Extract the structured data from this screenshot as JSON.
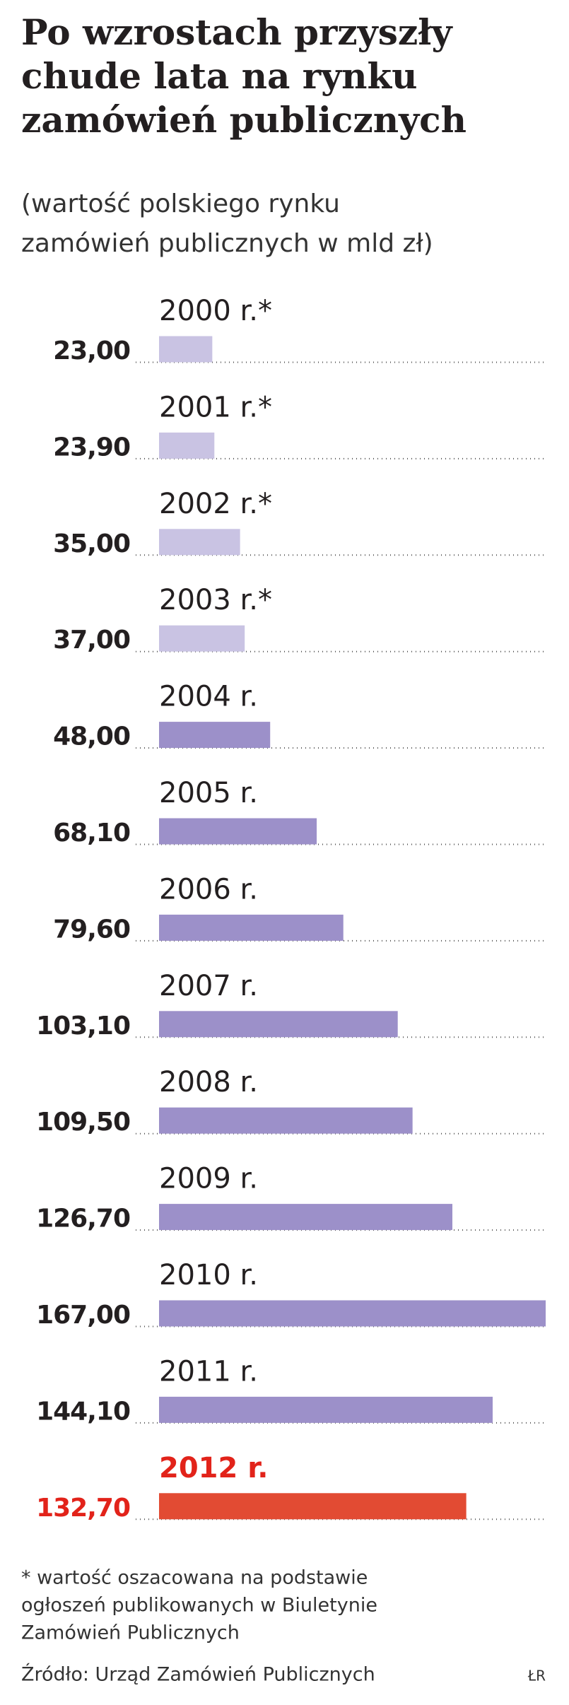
{
  "chart_data": {
    "type": "bar",
    "orientation": "horizontal",
    "title": [
      "Po wzrostach przyszły",
      "chude lata na rynku",
      "zamówień publicznych"
    ],
    "subtitle": [
      "(wartość polskiego rynku",
      "zamówień publicznych w mld zł)"
    ],
    "categories": [
      "2000 r.*",
      "2001 r.*",
      "2002 r.*",
      "2003 r.*",
      "2004 r.",
      "2005 r.",
      "2006 r.",
      "2007 r.",
      "2008 r.",
      "2009 r.",
      "2010 r.",
      "2011 r.",
      "2012 r."
    ],
    "values": [
      23.0,
      23.9,
      35.0,
      37.0,
      48.0,
      68.1,
      79.6,
      103.1,
      109.5,
      126.7,
      167.0,
      144.1,
      132.7
    ],
    "value_labels": [
      "23,00",
      "23,90",
      "35,00",
      "37,00",
      "48,00",
      "68,10",
      "79,60",
      "103,10",
      "109,50",
      "126,70",
      "167,00",
      "144,10",
      "132,70"
    ],
    "colors": [
      "#c9c3e3",
      "#c9c3e3",
      "#c9c3e3",
      "#c9c3e3",
      "#9c90c9",
      "#9c90c9",
      "#9c90c9",
      "#9c90c9",
      "#9c90c9",
      "#9c90c9",
      "#9c90c9",
      "#9c90c9",
      "#e24b33"
    ],
    "label_colors": [
      "#231f20",
      "#231f20",
      "#231f20",
      "#231f20",
      "#231f20",
      "#231f20",
      "#231f20",
      "#231f20",
      "#231f20",
      "#231f20",
      "#231f20",
      "#231f20",
      "#e2231a"
    ],
    "footnote": [
      "* wartość oszacowana na podstawie",
      "ogłoszeń publikowanych w Biuletynie",
      "Zamówień Publicznych"
    ],
    "source": "Źródło: Urząd Zamówień Publicznych",
    "credit": "ŁR"
  }
}
